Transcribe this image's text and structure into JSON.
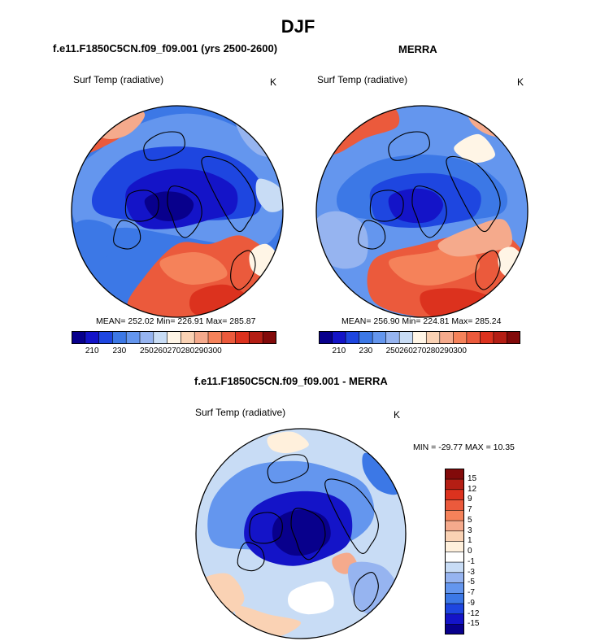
{
  "page": {
    "title": "DJF",
    "panel_left_title": "f.e11.F1850C5CN.f09_f09.001 (yrs 2500-2600)",
    "panel_right_title": "MERRA",
    "diff_title": "f.e11.F1850C5CN.f09_f09.001 - MERRA"
  },
  "colors": {
    "abs_scale": [
      "#08008c",
      "#1414c8",
      "#1e46e0",
      "#3c78e6",
      "#6496ee",
      "#96b4f0",
      "#c8dcf5",
      "#fff5e6",
      "#fad2b4",
      "#f5aa8c",
      "#f5825a",
      "#eb5a3c",
      "#dc321e",
      "#b41e14",
      "#820a0a"
    ],
    "diff_scale": [
      "#08008c",
      "#1414c8",
      "#1e46e0",
      "#3c78e6",
      "#6496ee",
      "#96b4f0",
      "#c8dcf5",
      "#ffffff",
      "#fff0dc",
      "#fad2b4",
      "#f5aa8c",
      "#f5825a",
      "#eb5a3c",
      "#dc321e",
      "#b41e14",
      "#820a0a"
    ]
  },
  "chart_data": [
    {
      "type": "heatmap",
      "name": "model",
      "title": "f.e11.F1850C5CN.f09_f09.001 (yrs 2500-2600)",
      "variable": "Surf Temp (radiative)",
      "units": "K",
      "stats": {
        "mean": "252.02",
        "min": "226.91",
        "max": "285.87"
      },
      "stats_text": "MEAN= 252.02  Min= 226.91  Max= 285.87",
      "colorbar_ticks": [
        "210",
        "230",
        "250",
        "260",
        "270",
        "280",
        "290",
        "300"
      ]
    },
    {
      "type": "heatmap",
      "name": "merra",
      "title": "MERRA",
      "variable": "Surf Temp (radiative)",
      "units": "K",
      "stats": {
        "mean": "256.90",
        "min": "224.81",
        "max": "285.24"
      },
      "stats_text": "MEAN= 256.90  Min= 224.81  Max= 285.24",
      "colorbar_ticks": [
        "210",
        "230",
        "250",
        "260",
        "270",
        "280",
        "290",
        "300"
      ]
    },
    {
      "type": "heatmap",
      "name": "difference",
      "title": "f.e11.F1850C5CN.f09_f09.001 - MERRA",
      "variable": "Surf Temp (radiative)",
      "units": "K",
      "stats": {
        "min": "-29.77",
        "max": "10.35"
      },
      "stats_text": "MIN = -29.77 MAX =  10.35",
      "colorbar_ticks": [
        "15",
        "12",
        "9",
        "7",
        "5",
        "3",
        "1",
        "0",
        "-1",
        "-3",
        "-5",
        "-7",
        "-9",
        "-12",
        "-15"
      ]
    }
  ]
}
